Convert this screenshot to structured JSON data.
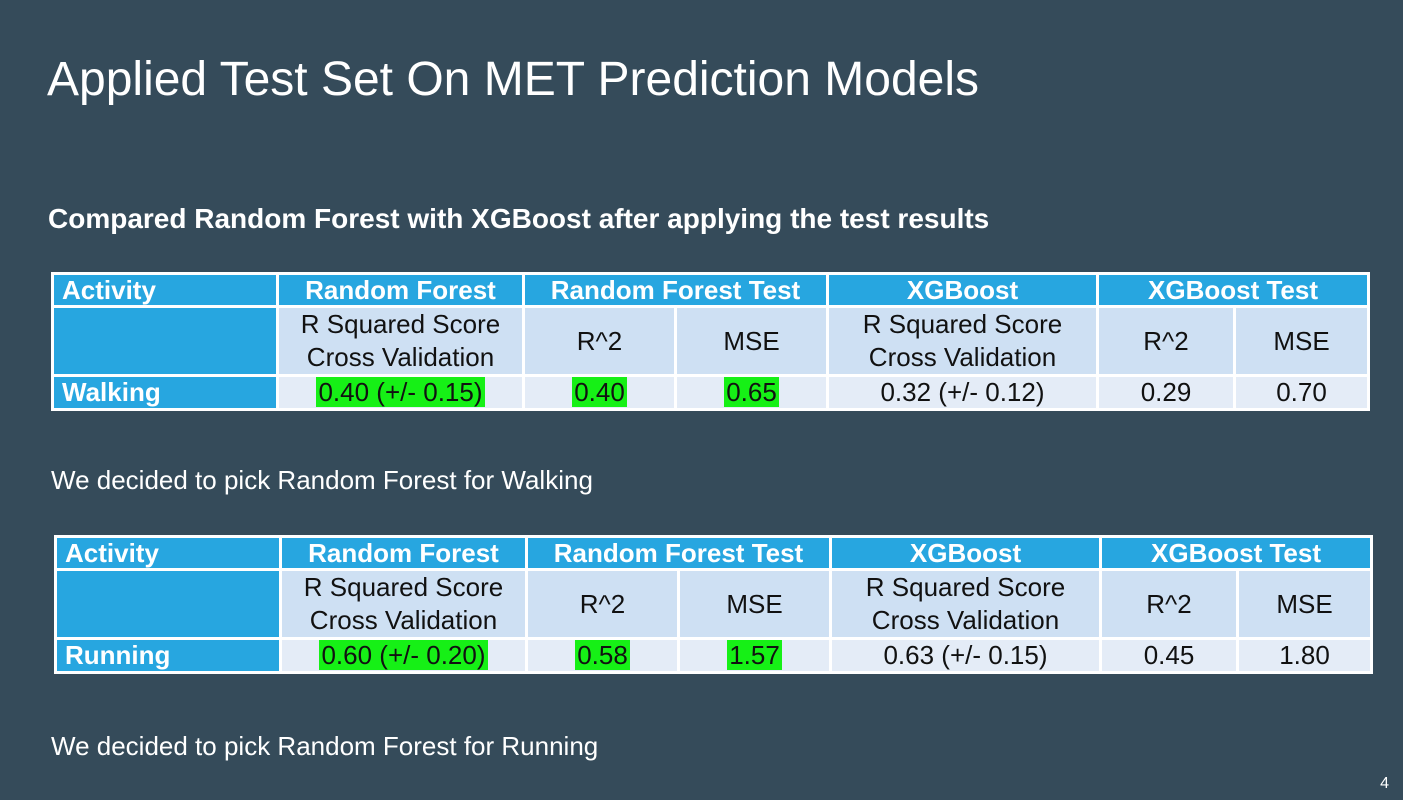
{
  "slide": {
    "title": "Applied Test Set On MET Prediction Models",
    "subtitle": "Compared Random Forest with XGBoost after applying the test results",
    "page_number": "4"
  },
  "colors": {
    "background": "#354b5a",
    "header_fill": "#27a6e0",
    "subheader_fill": "#cee0f3",
    "row_fill": "#e4ecf7",
    "best_highlight": "#16f016"
  },
  "header": {
    "activity": "Activity",
    "random_forest": "Random Forest",
    "random_forest_test": "Random Forest Test",
    "xgboost": "XGBoost",
    "xgboost_test": "XGBoost Test"
  },
  "subheader": {
    "r_squared_line1": "R Squared Score",
    "r_squared_line2": "Cross Validation",
    "r2": "R^2",
    "mse": "MSE"
  },
  "walking": {
    "activity": "Walking",
    "rf_cv": "0.40 (+/- 0.15)",
    "rf_test_r2": "0.40",
    "rf_test_mse": "0.65",
    "xgb_cv": "0.32 (+/- 0.12)",
    "xgb_test_r2": "0.29",
    "xgb_test_mse": "0.70",
    "conclusion": "We decided to pick Random Forest for Walking"
  },
  "running": {
    "activity": "Running",
    "rf_cv": "0.60 (+/- 0.20)",
    "rf_test_r2": "0.58",
    "rf_test_mse": "1.57",
    "xgb_cv": "0.63 (+/- 0.15)",
    "xgb_test_r2": "0.45",
    "xgb_test_mse": "1.80",
    "conclusion": "We decided to pick Random Forest for Running"
  }
}
